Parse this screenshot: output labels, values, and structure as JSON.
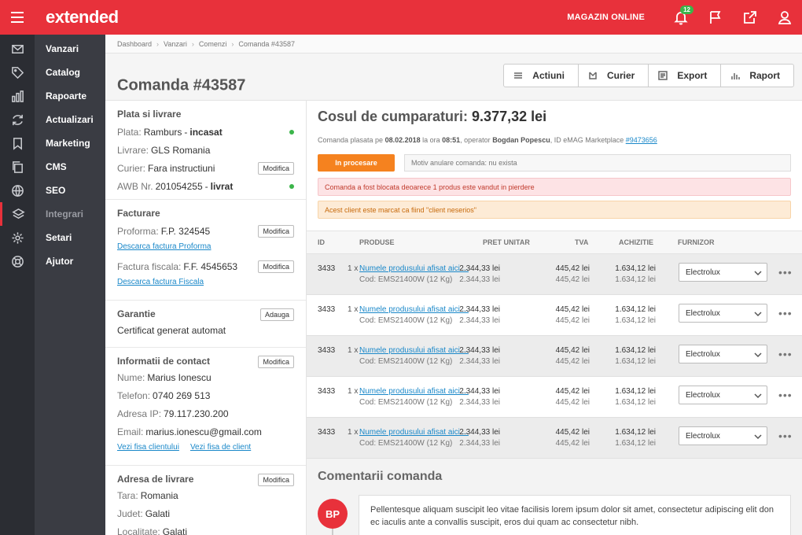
{
  "app": {
    "logo": "extended"
  },
  "topbar": {
    "shop_label": "MAGAZIN ONLINE",
    "notif_count": "12"
  },
  "menu": [
    {
      "label": "Vanzari",
      "icon": "inbox-icon",
      "dim": false
    },
    {
      "label": "Catalog",
      "icon": "tag-icon",
      "dim": false
    },
    {
      "label": "Rapoarte",
      "icon": "bar-chart-icon",
      "dim": false
    },
    {
      "label": "Actualizari",
      "icon": "refresh-icon",
      "dim": false
    },
    {
      "label": "Marketing",
      "icon": "bookmark-icon",
      "dim": false
    },
    {
      "label": "CMS",
      "icon": "copy-icon",
      "dim": false
    },
    {
      "label": "SEO",
      "icon": "globe-icon",
      "dim": false
    },
    {
      "label": "Integrari",
      "icon": "layers-icon",
      "dim": true
    },
    {
      "label": "Setari",
      "icon": "gear-icon",
      "dim": false
    },
    {
      "label": "Ajutor",
      "icon": "lifebuoy-icon",
      "dim": false
    }
  ],
  "breadcrumb": [
    "Dashboard",
    "Vanzari",
    "Comenzi",
    "Comanda #43587"
  ],
  "page": {
    "title": "Comanda #43587"
  },
  "actions": [
    {
      "label": "Actiuni",
      "icon": "list-icon"
    },
    {
      "label": "Curier",
      "icon": "courier-icon"
    },
    {
      "label": "Export",
      "icon": "export-icon"
    },
    {
      "label": "Raport",
      "icon": "report-icon"
    }
  ],
  "shipping": {
    "heading": "Plata si livrare",
    "payment_label": "Plata:",
    "payment_value": "Ramburs",
    "payment_status": "incasat",
    "delivery_label": "Livrare:",
    "delivery_value": "GLS Romania",
    "courier_label": "Curier:",
    "courier_value": "Fara instructiuni",
    "modify": "Modifica",
    "awb_label": "AWB Nr.",
    "awb_value": "201054255",
    "awb_status": "livrat"
  },
  "billing": {
    "heading": "Facturare",
    "proforma_label": "Proforma:",
    "proforma_value": "F.P. 324545",
    "proforma_link": "Descarca factura Proforma",
    "fiscal_label": "Factura fiscala:",
    "fiscal_value": "F.F. 4545653",
    "fiscal_link": "Descarca factura Fiscala",
    "modify": "Modifica"
  },
  "warranty": {
    "heading": "Garantie",
    "add": "Adauga",
    "text": "Certificat generat automat"
  },
  "contact": {
    "heading": "Informatii de contact",
    "modify": "Modifica",
    "name_label": "Nume:",
    "name_value": "Marius Ionescu",
    "phone_label": "Telefon:",
    "phone_value": "0740 269 513",
    "ip_label": "Adresa IP:",
    "ip_value": "79.117.230.200",
    "email_label": "Email:",
    "email_value": "marius.ionescu@gmail.com",
    "link1": "Vezi fisa clientului",
    "link2": "Vezi fisa de client"
  },
  "address": {
    "heading": "Adresa de livrare",
    "modify": "Modifica",
    "country_label": "Tara:",
    "country_value": "Romania",
    "county_label": "Judet:",
    "county_value": "Galati",
    "city_label": "Localitate:",
    "city_value": "Galati"
  },
  "cart": {
    "title": "Cosul de cumparaturi:",
    "amount": "9.377,32 lei",
    "info_pre": "Comanda plasata pe ",
    "info_date": "08.02.2018",
    "info_mid": " la ora ",
    "info_time": "08:51",
    "info_op": ", operator ",
    "info_operator": "Bogdan Popescu",
    "info_id": ", ID eMAG Marketplace ",
    "info_link": "#9473656",
    "status": "In procesare",
    "reason": "Motiv anulare comanda: nu exista",
    "alert_red": "Comanda a fost blocata deoarece 1 produs este vandut in pierdere",
    "alert_orange": "Acest client este marcat ca fiind \"client neserios\""
  },
  "table": {
    "headers": {
      "id": "ID",
      "products": "PRODUSE",
      "price": "PRET UNITAR",
      "vat": "TVA",
      "acquisition": "ACHIZITIE",
      "supplier": "FURNIZOR"
    },
    "rows": [
      {
        "id": "3433",
        "qty": "1 x",
        "name": "Numele produsului afisat aici ...",
        "code": "Cod: EMS21400W (12 Kg)",
        "price": "2.344,33 lei",
        "price2": "2.344,33 lei",
        "vat": "445,42 lei",
        "vat2": "445,42 lei",
        "acq": "1.634,12 lei",
        "acq2": "1.634,12 lei",
        "supplier": "Electrolux"
      },
      {
        "id": "3433",
        "qty": "1 x",
        "name": "Numele produsului afisat aici ...",
        "code": "Cod: EMS21400W (12 Kg)",
        "price": "2.344,33 lei",
        "price2": "2.344,33 lei",
        "vat": "445,42 lei",
        "vat2": "445,42 lei",
        "acq": "1.634,12 lei",
        "acq2": "1.634,12 lei",
        "supplier": "Electrolux"
      },
      {
        "id": "3433",
        "qty": "1 x",
        "name": "Numele produsului afisat aici ...",
        "code": "Cod: EMS21400W (12 Kg)",
        "price": "2.344,33 lei",
        "price2": "2.344,33 lei",
        "vat": "445,42 lei",
        "vat2": "445,42 lei",
        "acq": "1.634,12 lei",
        "acq2": "1.634,12 lei",
        "supplier": "Electrolux"
      },
      {
        "id": "3433",
        "qty": "1 x",
        "name": "Numele produsului afisat aici ...",
        "code": "Cod: EMS21400W (12 Kg)",
        "price": "2.344,33 lei",
        "price2": "2.344,33 lei",
        "vat": "445,42 lei",
        "vat2": "445,42 lei",
        "acq": "1.634,12 lei",
        "acq2": "1.634,12 lei",
        "supplier": "Electrolux"
      },
      {
        "id": "3433",
        "qty": "1 x",
        "name": "Numele produsului afisat aici ...",
        "code": "Cod: EMS21400W (12 Kg)",
        "price": "2.344,33 lei",
        "price2": "2.344,33 lei",
        "vat": "445,42 lei",
        "vat2": "445,42 lei",
        "acq": "1.634,12 lei",
        "acq2": "1.634,12 lei",
        "supplier": "Electrolux"
      }
    ]
  },
  "comments": {
    "heading": "Comentarii comanda",
    "items": [
      {
        "initials": "BP",
        "text": "Pellentesque aliquam suscipit leo vitae facilisis lorem ipsum dolor sit amet, consectetur adipiscing elit don ec iaculis ante a convallis suscipit, eros dui quam ac consectetur nibh."
      }
    ]
  },
  "colors": {
    "brand": "#e8313b",
    "status": "#f5821f",
    "success": "#3bb54a",
    "link": "#1a88c9"
  }
}
